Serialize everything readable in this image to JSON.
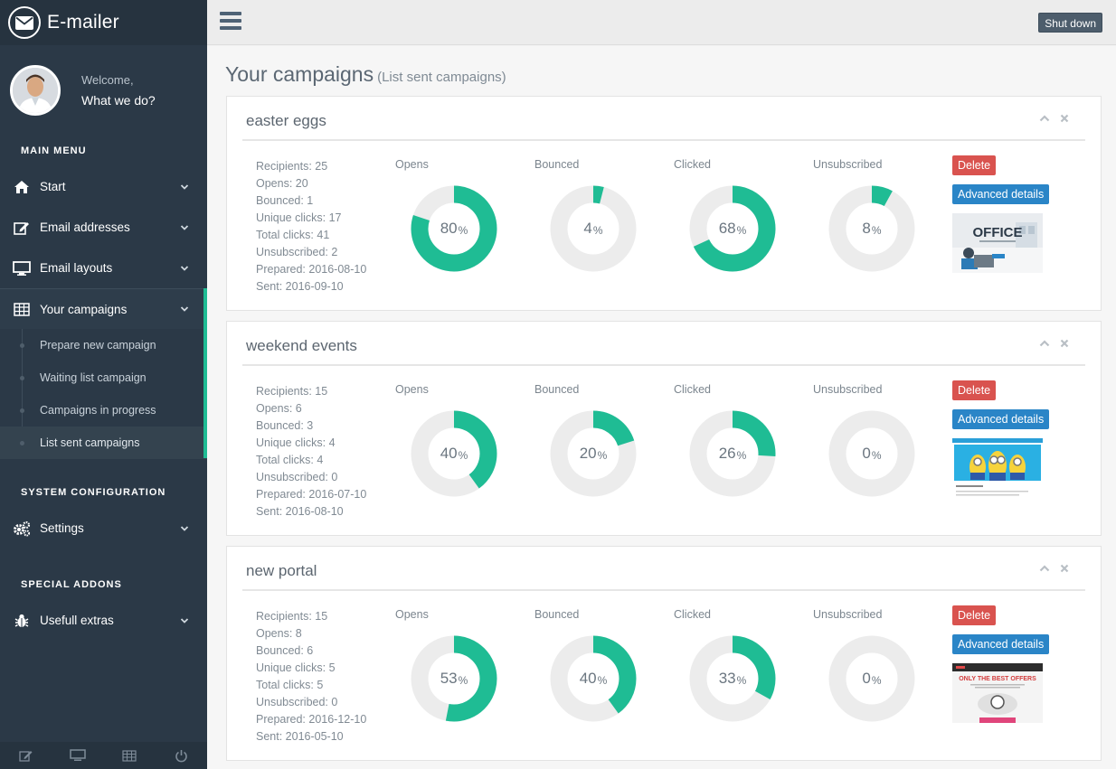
{
  "app": {
    "title": "E-mailer"
  },
  "profile": {
    "welcome": "Welcome,",
    "subtitle": "What we do?"
  },
  "sidebar": {
    "main_menu_heading": "MAIN MENU",
    "items": [
      {
        "label": "Start",
        "icon": "home-icon"
      },
      {
        "label": "Email addresses",
        "icon": "edit-icon"
      },
      {
        "label": "Email layouts",
        "icon": "monitor-icon"
      },
      {
        "label": "Your campaigns",
        "icon": "table-icon"
      }
    ],
    "campaign_subitems": [
      {
        "label": "Prepare new campaign"
      },
      {
        "label": "Waiting list campaign"
      },
      {
        "label": "Campaigns in progress"
      },
      {
        "label": "List sent campaigns"
      }
    ],
    "system_heading": "SYSTEM CONFIGURATION",
    "settings_label": "Settings",
    "addons_heading": "SPECIAL ADDONS",
    "extras_label": "Usefull extras"
  },
  "topbar": {
    "shutdown_label": "Shut down"
  },
  "page": {
    "title": "Your campaigns",
    "subtitle": "(List sent campaigns)"
  },
  "chart_labels": {
    "opens": "Opens",
    "bounced": "Bounced",
    "clicked": "Clicked",
    "unsubscribed": "Unsubscribed"
  },
  "buttons": {
    "delete": "Delete",
    "details": "Advanced details"
  },
  "colors": {
    "accent": "#1fbc94",
    "track": "#ececec",
    "delete": "#d9534f",
    "details": "#2a85c7",
    "sidebar": "#2b3947"
  },
  "campaigns": [
    {
      "name": "easter eggs",
      "stats": [
        "Recipients: 25",
        "Opens: 20",
        "Bounced: 1",
        "Unique clicks: 17",
        "Total clicks: 41",
        "Unsubscribed: 2",
        "Prepared: 2016-08-10",
        "Sent: 2016-09-10"
      ],
      "opens": 80,
      "bounced": 4,
      "clicked": 68,
      "unsubscribed": 8,
      "thumb": {
        "kind": "office",
        "text": "OFFICE"
      }
    },
    {
      "name": "weekend events",
      "stats": [
        "Recipients: 15",
        "Opens: 6",
        "Bounced: 3",
        "Unique clicks: 4",
        "Total clicks: 4",
        "Unsubscribed: 0",
        "Prepared: 2016-07-10",
        "Sent: 2016-08-10"
      ],
      "opens": 40,
      "bounced": 20,
      "clicked": 26,
      "unsubscribed": 0,
      "thumb": {
        "kind": "minions",
        "text": ""
      }
    },
    {
      "name": "new portal",
      "stats": [
        "Recipients: 15",
        "Opens: 8",
        "Bounced: 6",
        "Unique clicks: 5",
        "Total clicks: 5",
        "Unsubscribed: 0",
        "Prepared: 2016-12-10",
        "Sent: 2016-05-10"
      ],
      "opens": 53,
      "bounced": 40,
      "clicked": 33,
      "unsubscribed": 0,
      "thumb": {
        "kind": "offers",
        "text": "ONLY THE BEST OFFERS"
      }
    }
  ]
}
